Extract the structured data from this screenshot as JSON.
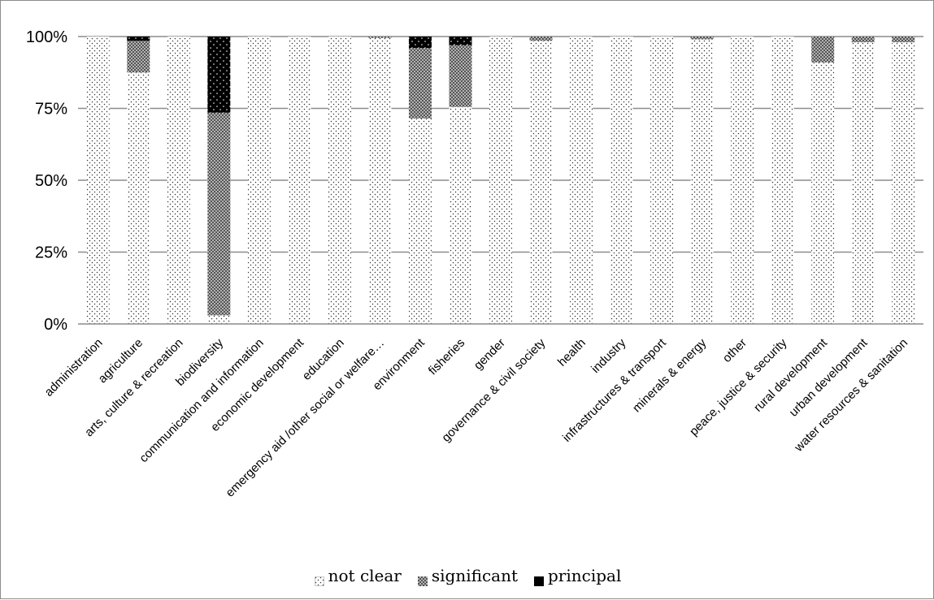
{
  "chart_data": {
    "type": "bar",
    "stacked": "percent",
    "title": "",
    "xlabel": "",
    "ylabel": "",
    "ylim": [
      0,
      100
    ],
    "yticks": [
      "0%",
      "25%",
      "50%",
      "75%",
      "100%"
    ],
    "grid": "horizontal",
    "legend_position": "bottom",
    "categories": [
      "administration",
      "agriculture",
      "arts, culture & recreation",
      "biodiversity",
      "communication and information",
      "economic development",
      "education",
      "emergency aid /other social or welfare…",
      "environment",
      "fisheries",
      "gender",
      "governance & civil society",
      "health",
      "industry",
      "infrastructures & transport",
      "minerals & energy",
      "other",
      "peace, justice & security",
      "rural development",
      "urban development",
      "water resources & sanitation"
    ],
    "series": [
      {
        "name": "not clear",
        "color": "#ffffff",
        "pattern": "dots",
        "values": [
          100,
          87.5,
          100,
          3,
          100,
          100,
          100,
          99.5,
          71.5,
          75.5,
          100,
          98.5,
          100,
          100,
          100,
          99,
          100,
          100,
          91,
          98,
          98
        ]
      },
      {
        "name": "significant",
        "color": "#999999",
        "pattern": "crosshatch",
        "values": [
          0,
          11,
          0,
          70.5,
          0,
          0,
          0,
          0.5,
          24.5,
          21.5,
          0,
          1.5,
          0,
          0,
          0,
          1,
          0,
          0,
          9,
          2,
          2
        ]
      },
      {
        "name": "principal",
        "color": "#000000",
        "pattern": "solid-with-white-dots",
        "values": [
          0,
          1.5,
          0,
          26.5,
          0,
          0,
          0,
          0,
          4,
          3,
          0,
          0,
          0,
          0,
          0,
          0,
          0,
          0,
          0,
          0,
          0
        ]
      }
    ]
  },
  "legend": {
    "items": [
      {
        "label": "not clear",
        "icon": "dotted-square-icon"
      },
      {
        "label": "significant",
        "icon": "crosshatch-square-icon"
      },
      {
        "label": "principal",
        "icon": "solid-square-icon"
      }
    ]
  }
}
